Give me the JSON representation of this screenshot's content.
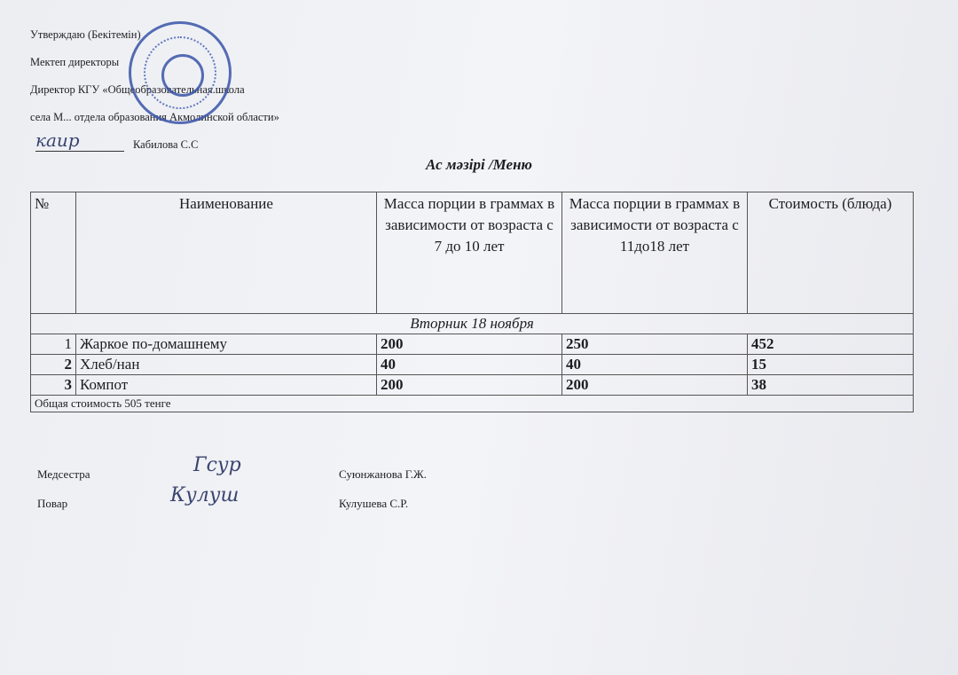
{
  "approval": {
    "line1": "Утверждаю (Бекітемін)",
    "line2": "Мектеп директоры",
    "line3": "Директор КГУ «Общеобразовательная.школа",
    "line4": "села М... отдела образования Акмолинской области»",
    "signature_name": "Кабилова С.С",
    "signature_scribble": "каир"
  },
  "title": "Ас мәзірі /Меню",
  "table": {
    "headers": [
      "№",
      "Наименование",
      "Масса порции в граммах в зависимости от возраста с 7 до 10 лет",
      "Масса порции в граммах в зависимости от возраста с  11до18 лет",
      "Стоимость (блюда)"
    ],
    "day": "Вторник 18 ноября",
    "rows": [
      {
        "num": "1",
        "name": "Жаркое по-домашнему",
        "mass_7_10": "200",
        "mass_11_18": "250",
        "cost": "452"
      },
      {
        "num": "2",
        "name": "Хлеб/нан",
        "mass_7_10": "40",
        "mass_11_18": "40",
        "cost": "15"
      },
      {
        "num": "3",
        "name": "Компот",
        "mass_7_10": "200",
        "mass_11_18": "200",
        "cost": "38"
      }
    ],
    "total": "Общая стоимость 505 тенге"
  },
  "signatures": [
    {
      "role": "Медсестра",
      "name": "Суюнжанова Г.Ж.",
      "scribble": "Гсур"
    },
    {
      "role": "Повар",
      "name": "Кулушева С.Р.",
      "scribble": "Кулуш"
    }
  ]
}
